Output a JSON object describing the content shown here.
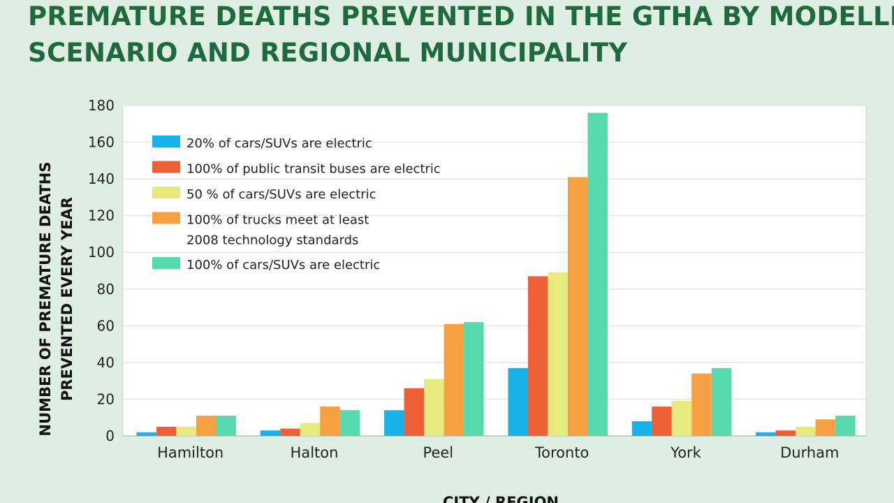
{
  "title_lines": [
    "PREMATURE DEATHS PREVENTED IN THE GTHA BY MODELLED",
    "SCENARIO AND REGIONAL MUNICIPALITY"
  ],
  "colors": {
    "title": "#1f6a3c",
    "background": "#dfeee2",
    "plot_background": "#ffffff",
    "gridline": "#e4e4e4"
  },
  "chart_data": {
    "type": "bar",
    "title": "PREMATURE DEATHS PREVENTED IN THE GTHA BY MODELLED SCENARIO AND REGIONAL MUNICIPALITY",
    "xlabel": "CITY / REGION",
    "ylabel_lines": [
      "NUMBER OF PREMATURE DEATHS",
      "PREVENTED EVERY YEAR"
    ],
    "ylim": [
      0,
      180
    ],
    "yticks": [
      0,
      20,
      40,
      60,
      80,
      100,
      120,
      140,
      160,
      180
    ],
    "grid": true,
    "legend_position": "top-left",
    "categories": [
      "Hamilton",
      "Halton",
      "Peel",
      "Toronto",
      "York",
      "Durham"
    ],
    "series": [
      {
        "name": "20% of cars/SUVs are electric",
        "legend_lines": [
          "20% of cars/SUVs are electric"
        ],
        "color": "#1ab0ea",
        "values": [
          2,
          3,
          14,
          37,
          8,
          2
        ]
      },
      {
        "name": "100% of public transit buses are electric",
        "legend_lines": [
          "100% of public transit buses are electric"
        ],
        "color": "#ec5f37",
        "values": [
          5,
          4,
          26,
          87,
          16,
          3
        ]
      },
      {
        "name": "50 % of cars/SUVs are electric",
        "legend_lines": [
          "50 % of cars/SUVs are electric"
        ],
        "color": "#e6ea7c",
        "values": [
          5,
          7,
          31,
          89,
          19,
          5
        ]
      },
      {
        "name": "100% of trucks meet at least 2008 technology standards",
        "legend_lines": [
          "100% of trucks meet at least",
          "2008 technology standards"
        ],
        "color": "#f7a043",
        "values": [
          11,
          16,
          61,
          141,
          34,
          9
        ]
      },
      {
        "name": "100% of cars/SUVs are electric",
        "legend_lines": [
          "100% of cars/SUVs are electric"
        ],
        "color": "#58d8ad",
        "values": [
          11,
          14,
          62,
          176,
          37,
          11
        ]
      }
    ]
  }
}
